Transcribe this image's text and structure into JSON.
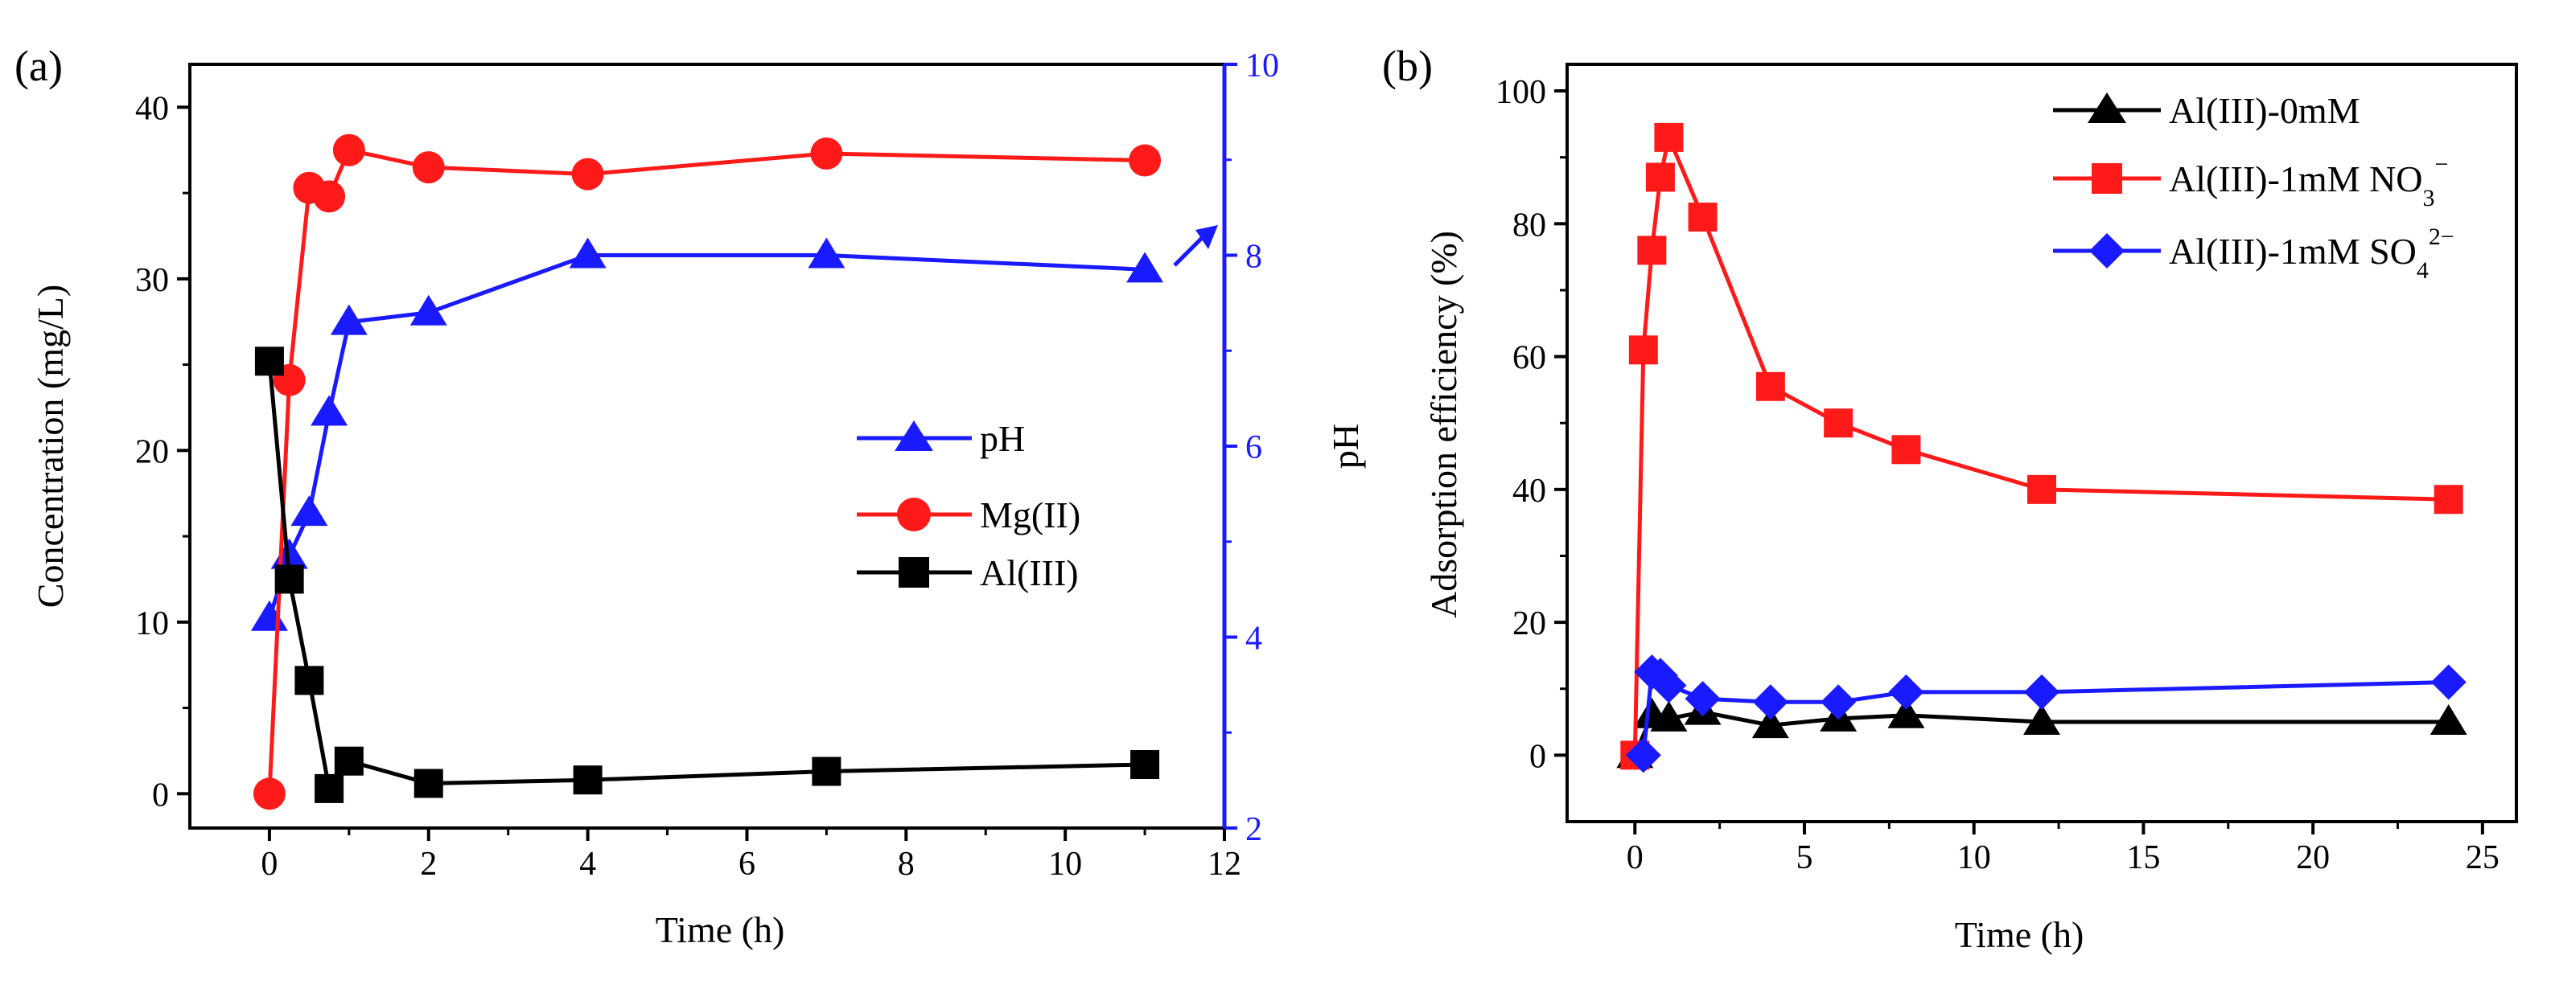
{
  "panels": [
    {
      "label": "(a)",
      "legend": [
        "pH",
        "Mg(II)",
        "Al(III)"
      ]
    },
    {
      "label": "(b)",
      "legend": [
        {
          "text": "Al(III)-0mM",
          "sup": ""
        },
        {
          "text": "Al(III)-1mM NO",
          "sub": "3",
          "sup": "−"
        },
        {
          "text": "Al(III)-1mM SO",
          "sub": "4",
          "sup": "2−"
        }
      ]
    }
  ],
  "chart_data": [
    {
      "type": "line",
      "title": "",
      "xlabel": "Time (h)",
      "ylabel": "Concentration (mg/L)",
      "y2label": "pH",
      "xlim": [
        -1,
        12
      ],
      "ylim": [
        -2,
        42.5
      ],
      "y2lim": [
        2,
        10
      ],
      "xticks": [
        0,
        2,
        4,
        6,
        8,
        10,
        12
      ],
      "yticks": [
        0,
        10,
        20,
        30,
        40
      ],
      "y2ticks": [
        2,
        4,
        6,
        8,
        10
      ],
      "legend_position": "center-right",
      "right_axis_color": "#1a1aff",
      "series": [
        {
          "name": "pH",
          "axis": "right",
          "color": "#1a1aff",
          "marker": "triangle",
          "x": [
            0,
            0.25,
            0.5,
            0.75,
            1,
            2,
            4,
            7,
            11
          ],
          "y": [
            4.2,
            4.85,
            5.3,
            6.35,
            7.3,
            7.4,
            8.0,
            8.0,
            7.85
          ]
        },
        {
          "name": "Mg(II)",
          "axis": "left",
          "color": "#ff1a1a",
          "marker": "circle",
          "x": [
            0,
            0.25,
            0.5,
            0.75,
            1,
            2,
            4,
            7,
            11
          ],
          "y": [
            0,
            24.1,
            35.3,
            34.8,
            37.5,
            36.5,
            36.1,
            37.3,
            36.9
          ]
        },
        {
          "name": "Al(III)",
          "axis": "left",
          "color": "#000000",
          "marker": "square",
          "x": [
            0,
            0.25,
            0.5,
            0.75,
            1,
            2,
            4,
            7,
            11
          ],
          "y": [
            25.2,
            12.5,
            6.6,
            0.3,
            1.9,
            0.6,
            0.8,
            1.3,
            1.7
          ]
        }
      ]
    },
    {
      "type": "line",
      "title": "",
      "xlabel": "Time (h)",
      "ylabel": "Adsorption efficiency (%)",
      "xlim": [
        -2,
        26
      ],
      "ylim": [
        -10,
        104
      ],
      "xticks": [
        0,
        5,
        10,
        15,
        20,
        25
      ],
      "yticks": [
        0,
        20,
        40,
        60,
        80,
        100
      ],
      "legend_position": "top-right",
      "series": [
        {
          "name": "Al(III)-0mM",
          "color": "#000000",
          "marker": "triangle",
          "x": [
            0,
            0.5,
            1,
            2,
            4,
            6,
            8,
            12,
            24
          ],
          "y": [
            0,
            6,
            5.5,
            6.5,
            4.5,
            5.5,
            6,
            5,
            5
          ]
        },
        {
          "name": "Al(III)-1mM NO3−",
          "color": "#ff1a1a",
          "marker": "square",
          "x": [
            0,
            0.25,
            0.5,
            0.75,
            1,
            2,
            4,
            6,
            8,
            12,
            24
          ],
          "y": [
            0,
            61,
            76,
            87,
            93,
            81,
            55.5,
            50,
            46,
            40,
            38.5
          ]
        },
        {
          "name": "Al(III)-1mM SO42−",
          "color": "#1a1aff",
          "marker": "diamond",
          "x": [
            0.25,
            0.5,
            0.75,
            1,
            2,
            4,
            6,
            8,
            12,
            24
          ],
          "y": [
            0,
            12.5,
            12,
            10.5,
            8.5,
            8,
            8,
            9.5,
            9.5,
            11
          ]
        }
      ]
    }
  ]
}
